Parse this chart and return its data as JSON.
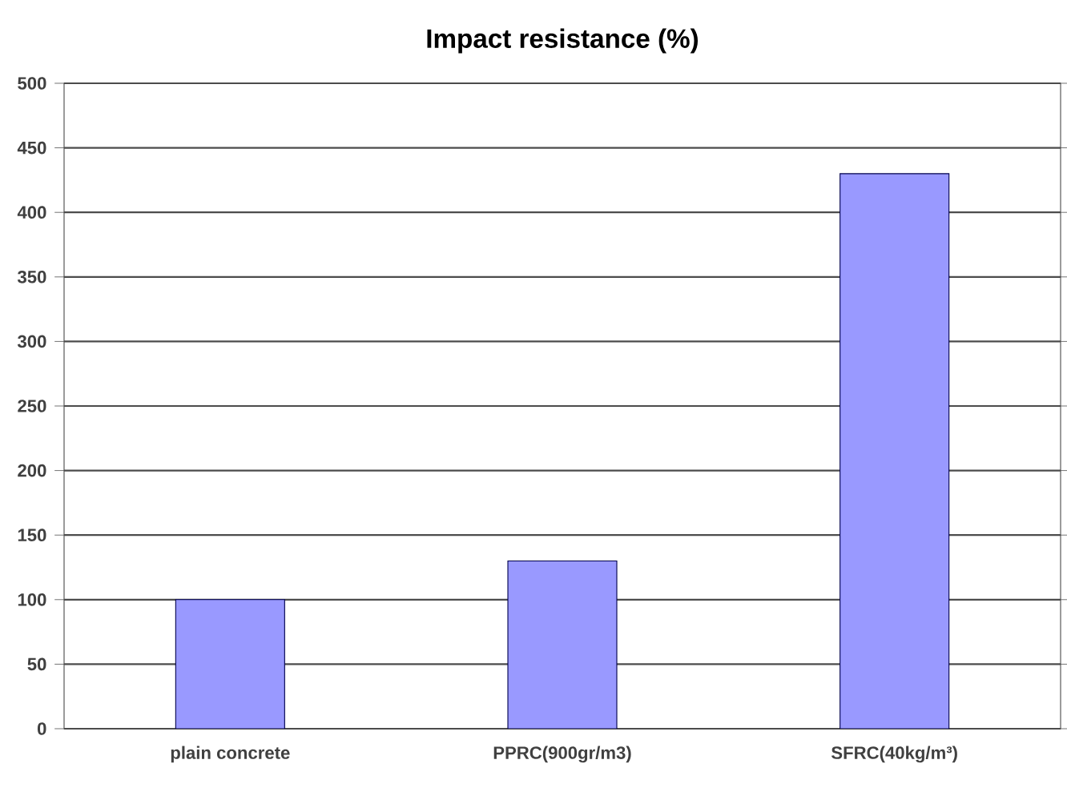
{
  "chart_data": {
    "type": "bar",
    "title": "Impact resistance (%)",
    "categories": [
      "plain concrete",
      "PPRC(900gr/m3)",
      "SFRC(40kg/m³)"
    ],
    "values": [
      100,
      130,
      430
    ],
    "color": "#9999ff",
    "ylim": [
      0,
      500
    ],
    "yticks": [
      0,
      50,
      100,
      150,
      200,
      250,
      300,
      350,
      400,
      450,
      500
    ],
    "grid": "y"
  }
}
